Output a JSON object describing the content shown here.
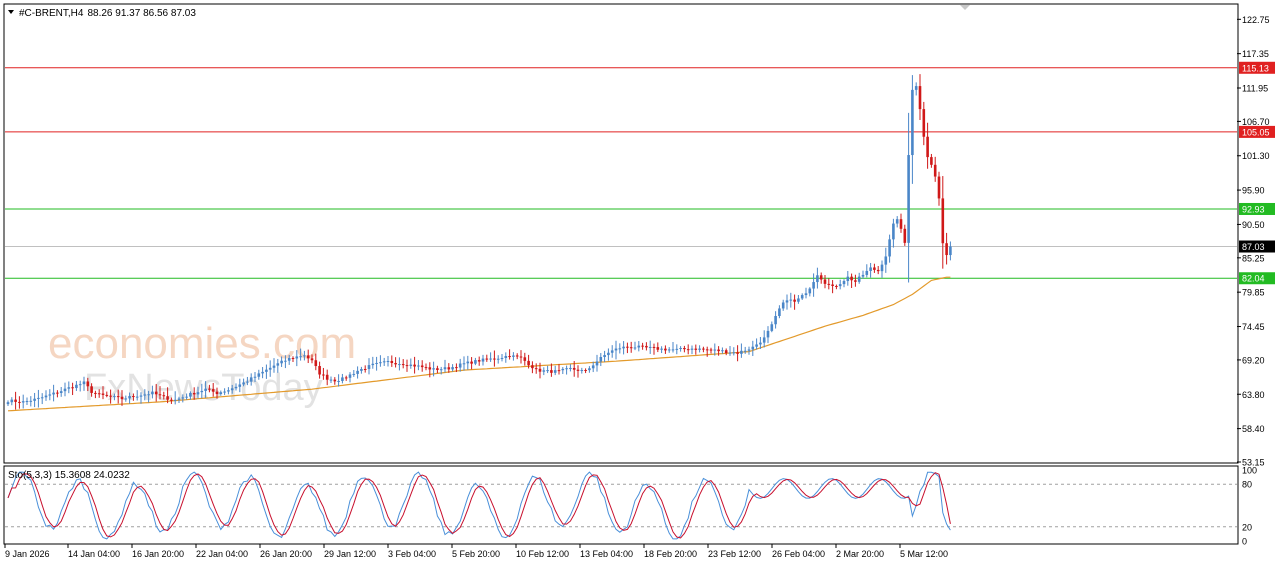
{
  "header": {
    "symbol": "#C-BRENT,H4",
    "ohlc": "88.26 91.37 86.56 87.03"
  },
  "watermark": {
    "line1": "economies.com",
    "line2": "FxNewsToday"
  },
  "chart_data": {
    "type": "candlestick",
    "symbol": "#C-BRENT",
    "timeframe": "H4",
    "ylim": [
      53.15,
      125.0
    ],
    "y_ticks": [
      "122.75",
      "117.35",
      "111.95",
      "106.70",
      "101.30",
      "95.90",
      "90.50",
      "85.25",
      "79.85",
      "74.45",
      "69.20",
      "63.80",
      "58.40",
      "53.15"
    ],
    "x_ticks": [
      "9 Jan 2026",
      "14 Jan 04:00",
      "16 Jan 20:00",
      "22 Jan 04:00",
      "26 Jan 20:00",
      "29 Jan 12:00",
      "3 Feb 04:00",
      "5 Feb 20:00",
      "10 Feb 12:00",
      "13 Feb 04:00",
      "18 Feb 20:00",
      "23 Feb 12:00",
      "26 Feb 04:00",
      "2 Mar 20:00",
      "5 Mar 12:00"
    ],
    "horizontal_levels": [
      {
        "value": 115.13,
        "label": "115.13",
        "color": "#e02020"
      },
      {
        "value": 105.05,
        "label": "105.05",
        "color": "#e02020"
      },
      {
        "value": 92.93,
        "label": "92.93",
        "color": "#22bb22"
      },
      {
        "value": 82.04,
        "label": "82.04",
        "color": "#22bb22"
      }
    ],
    "current_price": {
      "value": 87.03,
      "label": "87.03",
      "color": "#000000"
    },
    "close_path": [
      [
        0,
        62.8
      ],
      [
        4,
        62.6
      ],
      [
        8,
        63.1
      ],
      [
        12,
        63.9
      ],
      [
        16,
        64.8
      ],
      [
        20,
        65.6
      ],
      [
        22,
        64.2
      ],
      [
        24,
        63.7
      ],
      [
        27,
        63.4
      ],
      [
        30,
        63.1
      ],
      [
        34,
        63.6
      ],
      [
        38,
        64.0
      ],
      [
        41,
        63.3
      ],
      [
        44,
        62.9
      ],
      [
        48,
        63.8
      ],
      [
        52,
        64.6
      ],
      [
        55,
        64.0
      ],
      [
        58,
        64.5
      ],
      [
        62,
        65.6
      ],
      [
        66,
        66.9
      ],
      [
        70,
        68.3
      ],
      [
        74,
        69.4
      ],
      [
        78,
        70.0
      ],
      [
        80,
        69.0
      ],
      [
        82,
        67.1
      ],
      [
        84,
        66.3
      ],
      [
        86,
        66.0
      ],
      [
        88,
        66.2
      ],
      [
        92,
        67.5
      ],
      [
        96,
        68.4
      ],
      [
        100,
        68.9
      ],
      [
        104,
        68.6
      ],
      [
        108,
        68.2
      ],
      [
        112,
        67.7
      ],
      [
        116,
        67.9
      ],
      [
        120,
        68.6
      ],
      [
        124,
        69.1
      ],
      [
        128,
        69.4
      ],
      [
        132,
        69.9
      ],
      [
        135,
        69.5
      ],
      [
        137,
        68.6
      ],
      [
        139,
        67.6
      ],
      [
        142,
        67.4
      ],
      [
        145,
        67.4
      ],
      [
        148,
        67.8
      ],
      [
        150,
        67.6
      ],
      [
        152,
        67.4
      ],
      [
        155,
        69.0
      ],
      [
        158,
        70.4
      ],
      [
        161,
        71.1
      ],
      [
        164,
        71.3
      ],
      [
        168,
        71.1
      ],
      [
        172,
        70.9
      ],
      [
        176,
        70.8
      ],
      [
        180,
        71.0
      ],
      [
        184,
        70.8
      ],
      [
        188,
        70.6
      ],
      [
        192,
        70.3
      ],
      [
        196,
        71.2
      ],
      [
        199,
        72.6
      ],
      [
        201,
        74.6
      ],
      [
        203,
        77.2
      ],
      [
        205,
        78.8
      ],
      [
        207,
        78.3
      ],
      [
        209,
        79.2
      ],
      [
        211,
        80.6
      ],
      [
        213,
        82.7
      ],
      [
        215,
        81.4
      ],
      [
        217,
        80.6
      ],
      [
        219,
        81.3
      ],
      [
        221,
        82.2
      ],
      [
        223,
        81.5
      ],
      [
        225,
        82.6
      ],
      [
        227,
        83.6
      ],
      [
        229,
        83.2
      ],
      [
        231,
        85.6
      ],
      [
        233,
        90.4
      ],
      [
        234,
        91.5
      ],
      [
        235,
        89.6
      ],
      [
        236,
        87.6
      ],
      [
        237,
        101.6
      ],
      [
        238,
        111.8
      ],
      [
        239,
        112.2
      ],
      [
        240,
        108.8
      ],
      [
        241,
        104.5
      ],
      [
        242,
        101.2
      ],
      [
        243,
        99.8
      ],
      [
        244,
        98.0
      ],
      [
        245,
        94.6
      ],
      [
        246,
        87.3
      ],
      [
        247,
        85.9
      ],
      [
        248,
        87.03
      ]
    ],
    "moving_average": {
      "color": "#e39a2b",
      "path": [
        [
          0,
          61.2
        ],
        [
          40,
          62.6
        ],
        [
          80,
          64.6
        ],
        [
          120,
          67.6
        ],
        [
          160,
          69.0
        ],
        [
          195,
          70.5
        ],
        [
          205,
          72.5
        ],
        [
          215,
          74.5
        ],
        [
          225,
          76.2
        ],
        [
          233,
          77.9
        ],
        [
          238,
          79.5
        ],
        [
          243,
          81.7
        ],
        [
          247,
          82.2
        ]
      ]
    },
    "stochastic": {
      "label": "Sto(5,3,3) 15.3608 24.0232",
      "k_value": 15.3608,
      "d_value": 24.0232,
      "ylim": [
        0,
        100
      ],
      "levels": [
        80,
        20
      ],
      "y_ticks": [
        "100",
        "80",
        "20",
        "0"
      ],
      "k_color": "#4a90d9",
      "d_color": "#c8102e"
    }
  }
}
